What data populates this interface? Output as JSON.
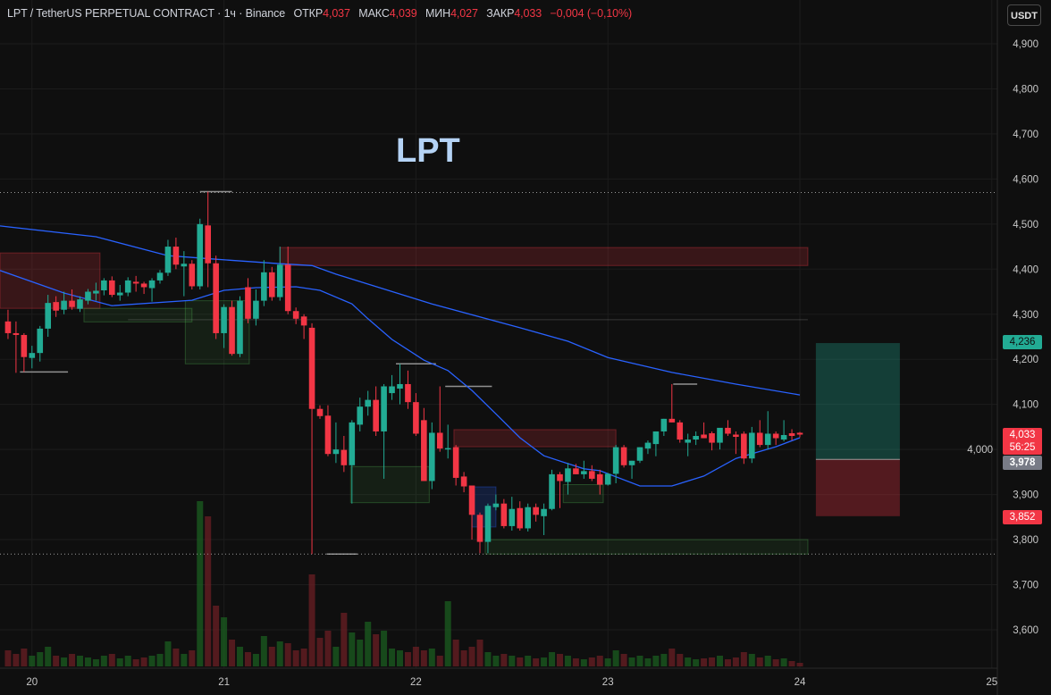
{
  "header": {
    "symbol": "LPT / TetherUS PERPETUAL CONTRACT",
    "sep1": "·",
    "interval": "1ч",
    "sep2": "·",
    "exchange": "Binance",
    "open_label": "ОТКР",
    "open": "4,037",
    "high_label": "МАКС",
    "high": "4,039",
    "low_label": "МИН",
    "low": "4,027",
    "close_label": "ЗАКР",
    "close": "4,033",
    "change": "−0,004 (−0,10%)"
  },
  "currency_button": "USDT",
  "chart_label": "LPT",
  "price_tags": {
    "target": {
      "value": "4,236",
      "color": "#22ab94"
    },
    "last": {
      "value": "4,033",
      "countdown": "56:25",
      "color": "#f23645"
    },
    "entry": {
      "value": "3,978",
      "color": "#787b86"
    },
    "stop": {
      "value": "3,852",
      "color": "#f23645"
    }
  },
  "colors": {
    "up": "#22ab94",
    "down": "#f23645",
    "ema": "#2962ff",
    "background": "#0f0f0f"
  },
  "chart_data": {
    "type": "candlestick",
    "interval": "1h",
    "ylim": [
      3560,
      4960
    ],
    "y_ticks": [
      "4,900",
      "4,800",
      "4,700",
      "4,600",
      "4,500",
      "4,400",
      "4,300",
      "4,200",
      "4,100",
      "4,000",
      "3,900",
      "3,800",
      "3,700",
      "3,600"
    ],
    "y_tick_values": [
      4900,
      4800,
      4700,
      4600,
      4500,
      4400,
      4300,
      4200,
      4100,
      4000,
      3900,
      3800,
      3700,
      3600
    ],
    "x_ticks": [
      "20",
      "21",
      "22",
      "23",
      "24",
      "25"
    ],
    "grid": true,
    "candle_fields": [
      "open",
      "high",
      "low",
      "close",
      "volume"
    ],
    "candles": [
      [
        4284,
        4310,
        4245,
        4258,
        18
      ],
      [
        4258,
        4284,
        4170,
        4254,
        14
      ],
      [
        4254,
        4258,
        4172,
        4205,
        20
      ],
      [
        4203,
        4230,
        4180,
        4214,
        12
      ],
      [
        4214,
        4274,
        4195,
        4268,
        16
      ],
      [
        4268,
        4343,
        4250,
        4325,
        22
      ],
      [
        4327,
        4340,
        4294,
        4308,
        12
      ],
      [
        4310,
        4350,
        4300,
        4330,
        10
      ],
      [
        4330,
        4355,
        4310,
        4316,
        14
      ],
      [
        4312,
        4340,
        4305,
        4333,
        12
      ],
      [
        4330,
        4356,
        4322,
        4350,
        10
      ],
      [
        4346,
        4370,
        4330,
        4352,
        8
      ],
      [
        4353,
        4380,
        4342,
        4375,
        12
      ],
      [
        4375,
        4384,
        4338,
        4343,
        14
      ],
      [
        4342,
        4365,
        4330,
        4348,
        9
      ],
      [
        4348,
        4382,
        4340,
        4375,
        12
      ],
      [
        4372,
        4385,
        4350,
        4368,
        8
      ],
      [
        4368,
        4372,
        4345,
        4360,
        10
      ],
      [
        4358,
        4380,
        4328,
        4375,
        12
      ],
      [
        4375,
        4398,
        4368,
        4392,
        14
      ],
      [
        4392,
        4465,
        4385,
        4450,
        28
      ],
      [
        4450,
        4470,
        4400,
        4410,
        20
      ],
      [
        4406,
        4440,
        4340,
        4412,
        14
      ],
      [
        4412,
        4420,
        4355,
        4362,
        18
      ],
      [
        4362,
        4512,
        4355,
        4500,
        185
      ],
      [
        4497,
        4572,
        4360,
        4413,
        168
      ],
      [
        4413,
        4430,
        4245,
        4258,
        68
      ],
      [
        4258,
        4322,
        4225,
        4316,
        55
      ],
      [
        4316,
        4330,
        4208,
        4212,
        30
      ],
      [
        4212,
        4340,
        4205,
        4330,
        22
      ],
      [
        4360,
        4380,
        4280,
        4290,
        16
      ],
      [
        4290,
        4355,
        4275,
        4330,
        14
      ],
      [
        4330,
        4420,
        4318,
        4393,
        34
      ],
      [
        4393,
        4405,
        4330,
        4338,
        22
      ],
      [
        4338,
        4450,
        4330,
        4410,
        28
      ],
      [
        4410,
        4450,
        4300,
        4307,
        26
      ],
      [
        4307,
        4315,
        4278,
        4290,
        18
      ],
      [
        4295,
        4300,
        4245,
        4275,
        20
      ],
      [
        4270,
        4280,
        3768,
        4090,
        103
      ],
      [
        4090,
        4098,
        4068,
        4074,
        32
      ],
      [
        4075,
        4098,
        3985,
        3990,
        40
      ],
      [
        3990,
        4060,
        3970,
        4000,
        22
      ],
      [
        3999,
        4030,
        3950,
        3965,
        60
      ],
      [
        3965,
        4065,
        3880,
        4060,
        38
      ],
      [
        4055,
        4115,
        4040,
        4095,
        30
      ],
      [
        4095,
        4130,
        4075,
        4110,
        50
      ],
      [
        4110,
        4140,
        4030,
        4040,
        36
      ],
      [
        4040,
        4145,
        3935,
        4140,
        40
      ],
      [
        4125,
        4165,
        4110,
        4140,
        20
      ],
      [
        4135,
        4190,
        4100,
        4145,
        18
      ],
      [
        4145,
        4175,
        4090,
        4105,
        16
      ],
      [
        4105,
        4125,
        4030,
        4035,
        22
      ],
      [
        4065,
        4092,
        3930,
        3930,
        18
      ],
      [
        3930,
        4060,
        3912,
        4037,
        20
      ],
      [
        4037,
        4140,
        3995,
        4002,
        12
      ],
      [
        4000,
        4055,
        3980,
        4003,
        73
      ],
      [
        4005,
        4010,
        3920,
        3937,
        30
      ],
      [
        3940,
        3950,
        3905,
        3918,
        18
      ],
      [
        3920,
        3920,
        3800,
        3855,
        22
      ],
      [
        3855,
        3860,
        3770,
        3795,
        30
      ],
      [
        3795,
        3880,
        3770,
        3875,
        16
      ],
      [
        3872,
        3900,
        3865,
        3880,
        12
      ],
      [
        3880,
        3890,
        3825,
        3830,
        14
      ],
      [
        3830,
        3895,
        3820,
        3868,
        12
      ],
      [
        3870,
        3885,
        3820,
        3825,
        10
      ],
      [
        3825,
        3880,
        3818,
        3872,
        12
      ],
      [
        3872,
        3880,
        3840,
        3855,
        9
      ],
      [
        3852,
        3880,
        3810,
        3868,
        10
      ],
      [
        3868,
        3955,
        3865,
        3945,
        16
      ],
      [
        3945,
        3950,
        3870,
        3930,
        14
      ],
      [
        3928,
        3970,
        3900,
        3958,
        12
      ],
      [
        3958,
        3968,
        3945,
        3945,
        9
      ],
      [
        3945,
        3975,
        3935,
        3952,
        8
      ],
      [
        3952,
        3965,
        3930,
        3935,
        10
      ],
      [
        3945,
        3955,
        3900,
        3922,
        12
      ],
      [
        3922,
        3948,
        3920,
        3946,
        9
      ],
      [
        3946,
        4010,
        3925,
        4005,
        18
      ],
      [
        4005,
        4010,
        3960,
        3965,
        14
      ],
      [
        3965,
        3975,
        3935,
        3975,
        10
      ],
      [
        3975,
        4005,
        3970,
        4005,
        12
      ],
      [
        4002,
        4020,
        3990,
        4015,
        9
      ],
      [
        4012,
        4040,
        3985,
        4040,
        12
      ],
      [
        4040,
        4068,
        4030,
        4068,
        14
      ],
      [
        4068,
        4145,
        4060,
        4060,
        20
      ],
      [
        4060,
        4065,
        4015,
        4022,
        14
      ],
      [
        4015,
        4035,
        3985,
        4022,
        10
      ],
      [
        4022,
        4040,
        4010,
        4030,
        8
      ],
      [
        4033,
        4060,
        4025,
        4025,
        9
      ],
      [
        4036,
        4040,
        3998,
        4015,
        10
      ],
      [
        4015,
        4045,
        4000,
        4048,
        12
      ],
      [
        4048,
        4065,
        4030,
        4035,
        8
      ],
      [
        4033,
        4040,
        3990,
        4028,
        10
      ],
      [
        4035,
        4040,
        3968,
        3980,
        16
      ],
      [
        3980,
        4050,
        3970,
        4037,
        14
      ],
      [
        4037,
        4065,
        4005,
        4010,
        10
      ],
      [
        4010,
        4085,
        4000,
        4035,
        12
      ],
      [
        4035,
        4040,
        4010,
        4025,
        8
      ],
      [
        4022,
        4065,
        4018,
        4032,
        9
      ],
      [
        4036,
        4045,
        4020,
        4030,
        6
      ],
      [
        4037,
        4039,
        4027,
        4033,
        4
      ]
    ],
    "ema_fast": [
      [
        "19 20:00",
        4397
      ],
      [
        "20 04:00",
        4347
      ],
      [
        "20 10:00",
        4319
      ],
      [
        "20 20:00",
        4331
      ],
      [
        "21 00:00",
        4353
      ],
      [
        "21 04:00",
        4359
      ],
      [
        "21 09:00",
        4361
      ],
      [
        "21 12:00",
        4353
      ],
      [
        "21 16:00",
        4323
      ],
      [
        "21 18:00",
        4290
      ],
      [
        "21 21:00",
        4244
      ],
      [
        "22 01:00",
        4198
      ],
      [
        "22 04:00",
        4175
      ],
      [
        "22 07:00",
        4131
      ],
      [
        "22 10:00",
        4079
      ],
      [
        "22 13:00",
        4026
      ],
      [
        "22 16:00",
        3986
      ],
      [
        "22 21:00",
        3957
      ],
      [
        "22 23:00",
        3953
      ],
      [
        "23 04:00",
        3919
      ],
      [
        "23 08:00",
        3919
      ],
      [
        "23 12:00",
        3941
      ],
      [
        "23 16:00",
        3980
      ],
      [
        "23 21:00",
        4006
      ],
      [
        "24 00:00",
        4026
      ]
    ],
    "ema_slow": [
      [
        "19 20:00",
        4496
      ],
      [
        "20 08:00",
        4472
      ],
      [
        "20 17:00",
        4430
      ],
      [
        "20 23:00",
        4422
      ],
      [
        "21 07:00",
        4412
      ],
      [
        "21 11:00",
        4408
      ],
      [
        "21 14:00",
        4389
      ],
      [
        "22 02:00",
        4323
      ],
      [
        "22 13:00",
        4270
      ],
      [
        "22 19:00",
        4240
      ],
      [
        "23 00:00",
        4204
      ],
      [
        "23 08:00",
        4171
      ],
      [
        "23 16:00",
        4145
      ],
      [
        "24 00:00",
        4121
      ]
    ],
    "zones": [
      {
        "kind": "supply",
        "from": "19 16:00",
        "to": "20 08:30",
        "top": 4436,
        "bottom": 4313,
        "color": "#f23645"
      },
      {
        "kind": "supply",
        "from": "21 07:00",
        "to": "24 01:00",
        "top": 4448,
        "bottom": 4408,
        "color": "#f23645"
      },
      {
        "kind": "supply",
        "from": "22 04:45",
        "to": "23 01:00",
        "top": 4044,
        "bottom": 4006,
        "color": "#f23645"
      },
      {
        "kind": "demand",
        "from": "22 08:40",
        "to": "24 01:00",
        "top": 3800,
        "bottom": 3768,
        "color": "#4caf50"
      },
      {
        "kind": "demand",
        "from": "20 06:30",
        "to": "20 20:00",
        "top": 4313,
        "bottom": 4283,
        "color": "#4caf50"
      },
      {
        "kind": "demand",
        "from": "20 19:10",
        "to": "21 03:10",
        "top": 4330,
        "bottom": 4190,
        "color": "#4caf50"
      },
      {
        "kind": "demand",
        "from": "21 15:50",
        "to": "22 01:40",
        "top": 3962,
        "bottom": 3882,
        "color": "#4caf50"
      },
      {
        "kind": "demand",
        "from": "22 18:25",
        "to": "22 23:25",
        "top": 3922,
        "bottom": 3882,
        "color": "#4caf50"
      },
      {
        "kind": "fvg",
        "from": "22 07:00",
        "to": "22 10:00",
        "top": 3917,
        "bottom": 3828,
        "color": "#2962ff"
      }
    ],
    "dotted_levels": [
      4570,
      3768
    ],
    "swing_levels": [
      {
        "from": "19 22:30",
        "to": "20 04:30",
        "price": 4172
      },
      {
        "from": "20 21:00",
        "to": "21 01:00",
        "price": 4572
      },
      {
        "from": "21 12:50",
        "to": "21 16:40",
        "price": 3768
      },
      {
        "from": "21 21:30",
        "to": "22 02:30",
        "price": 4190
      },
      {
        "from": "22 03:40",
        "to": "22 09:30",
        "price": 4140
      },
      {
        "from": "23 08:10",
        "to": "23 11:10",
        "price": 4145
      },
      {
        "from": "20 12:00",
        "to": "24 01:00",
        "price": 4288
      }
    ],
    "position": {
      "type": "long",
      "from": "24 02:00",
      "to": "24 12:30",
      "target": 4236,
      "entry": 3978,
      "stop": 3852
    }
  }
}
